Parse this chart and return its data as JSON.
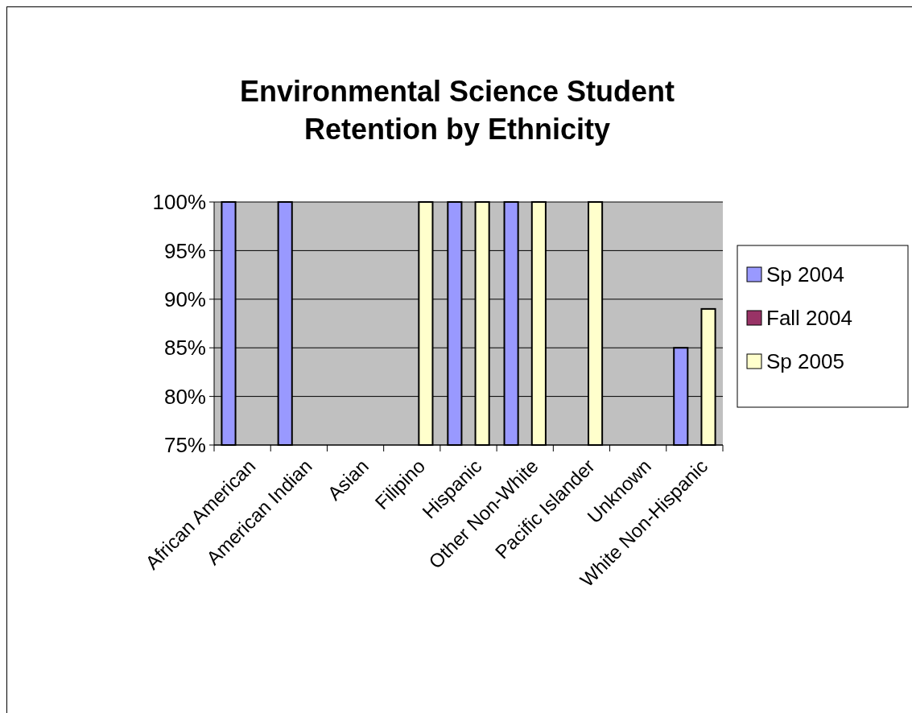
{
  "chart_data": {
    "type": "bar",
    "title": "Environmental Science Student Retention by Ethnicity",
    "categories": [
      "African American",
      "American Indian",
      "Asian",
      "Filipino",
      "Hispanic",
      "Other Non-White",
      "Pacific Islander",
      "Unknown",
      "White Non-Hispanic"
    ],
    "series": [
      {
        "name": "Sp 2004",
        "color": "#9999ff",
        "values": [
          1,
          1,
          null,
          null,
          1,
          1,
          null,
          null,
          0.85
        ]
      },
      {
        "name": "Fall 2004",
        "color": "#993366",
        "values": [
          null,
          null,
          null,
          null,
          null,
          null,
          null,
          null,
          null
        ]
      },
      {
        "name": "Sp 2005",
        "color": "#ffffcc",
        "values": [
          null,
          null,
          null,
          1,
          1,
          1,
          1,
          null,
          0.89
        ]
      }
    ],
    "ylim": [
      0.75,
      1
    ],
    "yticks": [
      {
        "value": 0.75,
        "label": "75%"
      },
      {
        "value": 0.8,
        "label": "80%"
      },
      {
        "value": 0.85,
        "label": "85%"
      },
      {
        "value": 0.9,
        "label": "90%"
      },
      {
        "value": 0.95,
        "label": "95%"
      },
      {
        "value": 1,
        "label": "100%"
      }
    ],
    "grid": "y",
    "legend": "right"
  }
}
